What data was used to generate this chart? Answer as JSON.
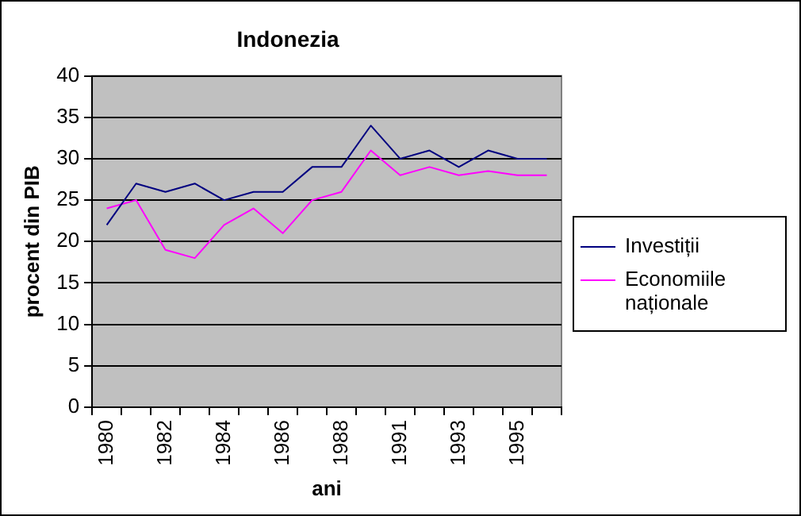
{
  "chart_data": {
    "type": "line",
    "title": "Indonezia",
    "xlabel": "ani",
    "ylabel": "procent din PIB",
    "categories": [
      "1980",
      null,
      "1982",
      null,
      "1984",
      null,
      "1986",
      null,
      "1988",
      null,
      "1991",
      null,
      "1993",
      null,
      "1995",
      null
    ],
    "series": [
      {
        "name": "Investiții",
        "color": "#000080",
        "values": [
          22,
          27,
          26,
          27,
          25,
          26,
          26,
          29,
          29,
          34,
          30,
          31,
          29,
          31,
          30,
          30
        ]
      },
      {
        "name": "Economiile naționale",
        "color": "#ff00ff",
        "values": [
          24,
          25,
          19,
          18,
          22,
          24,
          21,
          25,
          26,
          31,
          28,
          29,
          28,
          28.5,
          28,
          28
        ]
      }
    ],
    "ylim": [
      0,
      40
    ],
    "yticks": [
      0,
      5,
      10,
      15,
      20,
      25,
      30,
      35,
      40
    ],
    "grid": "y",
    "legend": "right",
    "marker": "none",
    "line_style": "solid"
  }
}
